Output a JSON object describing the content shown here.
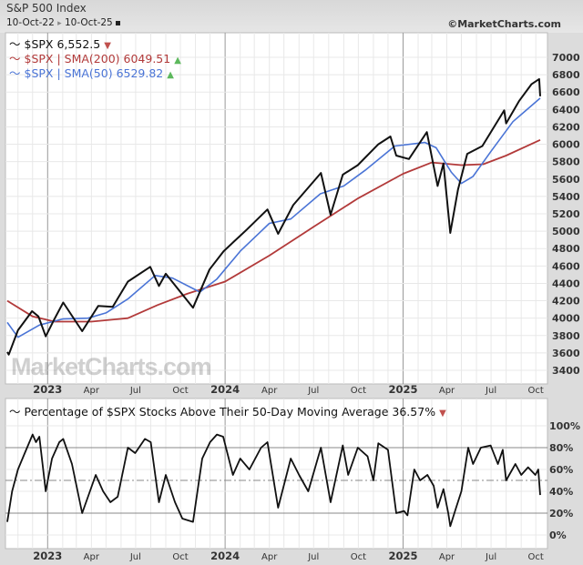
{
  "header": {
    "title": "S&P 500 Index",
    "range_start": "10-Oct-22",
    "range_sep": "▸",
    "range_end": "10-Oct-25",
    "copyright": "©MarketCharts.com",
    "watermark": "MarketCharts.com"
  },
  "colors": {
    "price": "#111111",
    "sma200": "#b23a3a",
    "sma50": "#4a74d6",
    "up": "#5cb85c",
    "down": "#c0504d"
  },
  "chart_data": [
    {
      "type": "line",
      "title": "",
      "ylim": [
        3300,
        7100
      ],
      "yticks": [
        3400,
        3600,
        3800,
        4000,
        4200,
        4400,
        4600,
        4800,
        5000,
        5200,
        5400,
        5600,
        5800,
        6000,
        6200,
        6400,
        6600,
        6800,
        7000
      ],
      "xlim": [
        "2022-10-10",
        "2025-10-10"
      ],
      "xticks": [
        {
          "d": "2023-01-01",
          "l": "2023",
          "major": true
        },
        {
          "d": "2023-04-01",
          "l": "Apr"
        },
        {
          "d": "2023-07-01",
          "l": "Jul"
        },
        {
          "d": "2023-10-01",
          "l": "Oct"
        },
        {
          "d": "2024-01-01",
          "l": "2024",
          "major": true
        },
        {
          "d": "2024-04-01",
          "l": "Apr"
        },
        {
          "d": "2024-07-01",
          "l": "Jul"
        },
        {
          "d": "2024-10-01",
          "l": "Oct"
        },
        {
          "d": "2025-01-01",
          "l": "2025",
          "major": true
        },
        {
          "d": "2025-04-01",
          "l": "Apr"
        },
        {
          "d": "2025-07-01",
          "l": "Jul"
        },
        {
          "d": "2025-10-01",
          "l": "Oct"
        }
      ],
      "grid": true,
      "legend_position": "top-left",
      "series": [
        {
          "name": "$SPX",
          "legend_value": "6,552.5",
          "trend": "down",
          "points": [
            [
              "2022-10-10",
              3610
            ],
            [
              "2022-10-13",
              3580
            ],
            [
              "2022-11-01",
              3860
            ],
            [
              "2022-11-30",
              4080
            ],
            [
              "2022-12-13",
              4020
            ],
            [
              "2022-12-28",
              3790
            ],
            [
              "2023-01-15",
              3990
            ],
            [
              "2023-02-02",
              4180
            ],
            [
              "2023-03-13",
              3850
            ],
            [
              "2023-04-15",
              4140
            ],
            [
              "2023-05-15",
              4130
            ],
            [
              "2023-06-15",
              4420
            ],
            [
              "2023-07-31",
              4590
            ],
            [
              "2023-08-18",
              4370
            ],
            [
              "2023-09-01",
              4510
            ],
            [
              "2023-10-27",
              4120
            ],
            [
              "2023-11-30",
              4560
            ],
            [
              "2023-12-29",
              4770
            ],
            [
              "2024-02-15",
              5020
            ],
            [
              "2024-03-28",
              5250
            ],
            [
              "2024-04-19",
              4970
            ],
            [
              "2024-05-20",
              5300
            ],
            [
              "2024-07-16",
              5670
            ],
            [
              "2024-08-05",
              5190
            ],
            [
              "2024-08-30",
              5650
            ],
            [
              "2024-09-30",
              5760
            ],
            [
              "2024-11-11",
              6000
            ],
            [
              "2024-12-06",
              6090
            ],
            [
              "2024-12-18",
              5870
            ],
            [
              "2025-01-13",
              5830
            ],
            [
              "2025-02-19",
              6140
            ],
            [
              "2025-03-13",
              5520
            ],
            [
              "2025-03-25",
              5780
            ],
            [
              "2025-04-08",
              4980
            ],
            [
              "2025-04-24",
              5480
            ],
            [
              "2025-05-13",
              5890
            ],
            [
              "2025-06-13",
              5980
            ],
            [
              "2025-07-28",
              6390
            ],
            [
              "2025-08-01",
              6240
            ],
            [
              "2025-08-28",
              6500
            ],
            [
              "2025-09-22",
              6690
            ],
            [
              "2025-10-08",
              6750
            ],
            [
              "2025-10-10",
              6552.5
            ]
          ]
        },
        {
          "name": "$SPX | SMA(200)",
          "legend_value": "6049.51",
          "trend": "up",
          "points": [
            [
              "2022-10-10",
              4200
            ],
            [
              "2022-12-01",
              4020
            ],
            [
              "2023-01-15",
              3960
            ],
            [
              "2023-04-01",
              3960
            ],
            [
              "2023-06-15",
              4000
            ],
            [
              "2023-08-15",
              4150
            ],
            [
              "2023-10-15",
              4280
            ],
            [
              "2024-01-01",
              4420
            ],
            [
              "2024-04-01",
              4720
            ],
            [
              "2024-07-01",
              5050
            ],
            [
              "2024-10-01",
              5380
            ],
            [
              "2025-01-01",
              5660
            ],
            [
              "2025-03-01",
              5790
            ],
            [
              "2025-05-01",
              5760
            ],
            [
              "2025-06-15",
              5770
            ],
            [
              "2025-08-01",
              5870
            ],
            [
              "2025-10-10",
              6049.51
            ]
          ]
        },
        {
          "name": "$SPX | SMA(50)",
          "legend_value": "6529.82",
          "trend": "up",
          "points": [
            [
              "2022-10-10",
              3950
            ],
            [
              "2022-11-01",
              3780
            ],
            [
              "2022-12-15",
              3920
            ],
            [
              "2023-02-01",
              3990
            ],
            [
              "2023-03-25",
              4000
            ],
            [
              "2023-05-01",
              4060
            ],
            [
              "2023-06-15",
              4220
            ],
            [
              "2023-08-10",
              4490
            ],
            [
              "2023-09-15",
              4460
            ],
            [
              "2023-11-10",
              4300
            ],
            [
              "2023-12-15",
              4450
            ],
            [
              "2024-02-01",
              4770
            ],
            [
              "2024-04-01",
              5090
            ],
            [
              "2024-05-15",
              5140
            ],
            [
              "2024-07-15",
              5430
            ],
            [
              "2024-09-01",
              5520
            ],
            [
              "2024-10-15",
              5700
            ],
            [
              "2024-12-15",
              5980
            ],
            [
              "2025-02-15",
              6020
            ],
            [
              "2025-03-10",
              5960
            ],
            [
              "2025-04-10",
              5680
            ],
            [
              "2025-05-01",
              5550
            ],
            [
              "2025-05-25",
              5630
            ],
            [
              "2025-07-01",
              5920
            ],
            [
              "2025-08-15",
              6260
            ],
            [
              "2025-10-10",
              6529.82
            ]
          ]
        }
      ]
    },
    {
      "type": "line",
      "title": "Percentage of $SPX Stocks Above Their 50-Day Moving Average",
      "ylim": [
        -5,
        110
      ],
      "yticks": [
        0,
        20,
        40,
        60,
        80,
        100
      ],
      "ytick_labels": [
        "0%",
        "20%",
        "40%",
        "60%",
        "80%",
        "100%"
      ],
      "reference_lines": [
        20,
        50,
        80
      ],
      "series": [
        {
          "name": "Percentage of $SPX Stocks Above Their 50-Day Moving Average",
          "legend_value": "36.57%",
          "trend": "down",
          "points": [
            [
              "2022-10-10",
              12
            ],
            [
              "2022-10-20",
              40
            ],
            [
              "2022-11-01",
              60
            ],
            [
              "2022-11-15",
              75
            ],
            [
              "2022-12-01",
              92
            ],
            [
              "2022-12-08",
              85
            ],
            [
              "2022-12-15",
              90
            ],
            [
              "2022-12-28",
              40
            ],
            [
              "2023-01-10",
              70
            ],
            [
              "2023-01-25",
              85
            ],
            [
              "2023-02-02",
              88
            ],
            [
              "2023-02-20",
              65
            ],
            [
              "2023-03-13",
              20
            ],
            [
              "2023-03-25",
              35
            ],
            [
              "2023-04-10",
              55
            ],
            [
              "2023-04-25",
              40
            ],
            [
              "2023-05-10",
              30
            ],
            [
              "2023-05-25",
              35
            ],
            [
              "2023-06-15",
              80
            ],
            [
              "2023-06-30",
              75
            ],
            [
              "2023-07-20",
              88
            ],
            [
              "2023-08-01",
              85
            ],
            [
              "2023-08-18",
              30
            ],
            [
              "2023-09-01",
              55
            ],
            [
              "2023-09-20",
              30
            ],
            [
              "2023-10-05",
              15
            ],
            [
              "2023-10-27",
              12
            ],
            [
              "2023-11-15",
              70
            ],
            [
              "2023-12-01",
              85
            ],
            [
              "2023-12-15",
              92
            ],
            [
              "2023-12-28",
              90
            ],
            [
              "2024-01-17",
              55
            ],
            [
              "2024-02-01",
              70
            ],
            [
              "2024-02-20",
              60
            ],
            [
              "2024-03-15",
              80
            ],
            [
              "2024-03-28",
              85
            ],
            [
              "2024-04-19",
              25
            ],
            [
              "2024-05-15",
              70
            ],
            [
              "2024-06-01",
              55
            ],
            [
              "2024-06-20",
              40
            ],
            [
              "2024-07-16",
              80
            ],
            [
              "2024-08-05",
              30
            ],
            [
              "2024-08-30",
              82
            ],
            [
              "2024-09-10",
              55
            ],
            [
              "2024-09-30",
              80
            ],
            [
              "2024-10-20",
              72
            ],
            [
              "2024-11-01",
              50
            ],
            [
              "2024-11-11",
              84
            ],
            [
              "2024-12-01",
              78
            ],
            [
              "2024-12-18",
              20
            ],
            [
              "2025-01-03",
              22
            ],
            [
              "2025-01-10",
              18
            ],
            [
              "2025-01-24",
              60
            ],
            [
              "2025-02-05",
              50
            ],
            [
              "2025-02-20",
              55
            ],
            [
              "2025-03-05",
              45
            ],
            [
              "2025-03-13",
              25
            ],
            [
              "2025-03-25",
              42
            ],
            [
              "2025-04-04",
              20
            ],
            [
              "2025-04-08",
              8
            ],
            [
              "2025-04-20",
              25
            ],
            [
              "2025-05-01",
              40
            ],
            [
              "2025-05-15",
              80
            ],
            [
              "2025-05-25",
              65
            ],
            [
              "2025-06-10",
              80
            ],
            [
              "2025-06-30",
              82
            ],
            [
              "2025-07-15",
              65
            ],
            [
              "2025-07-25",
              78
            ],
            [
              "2025-08-01",
              50
            ],
            [
              "2025-08-20",
              65
            ],
            [
              "2025-09-01",
              55
            ],
            [
              "2025-09-15",
              62
            ],
            [
              "2025-09-30",
              55
            ],
            [
              "2025-10-06",
              60
            ],
            [
              "2025-10-10",
              36.57
            ]
          ]
        }
      ]
    }
  ]
}
